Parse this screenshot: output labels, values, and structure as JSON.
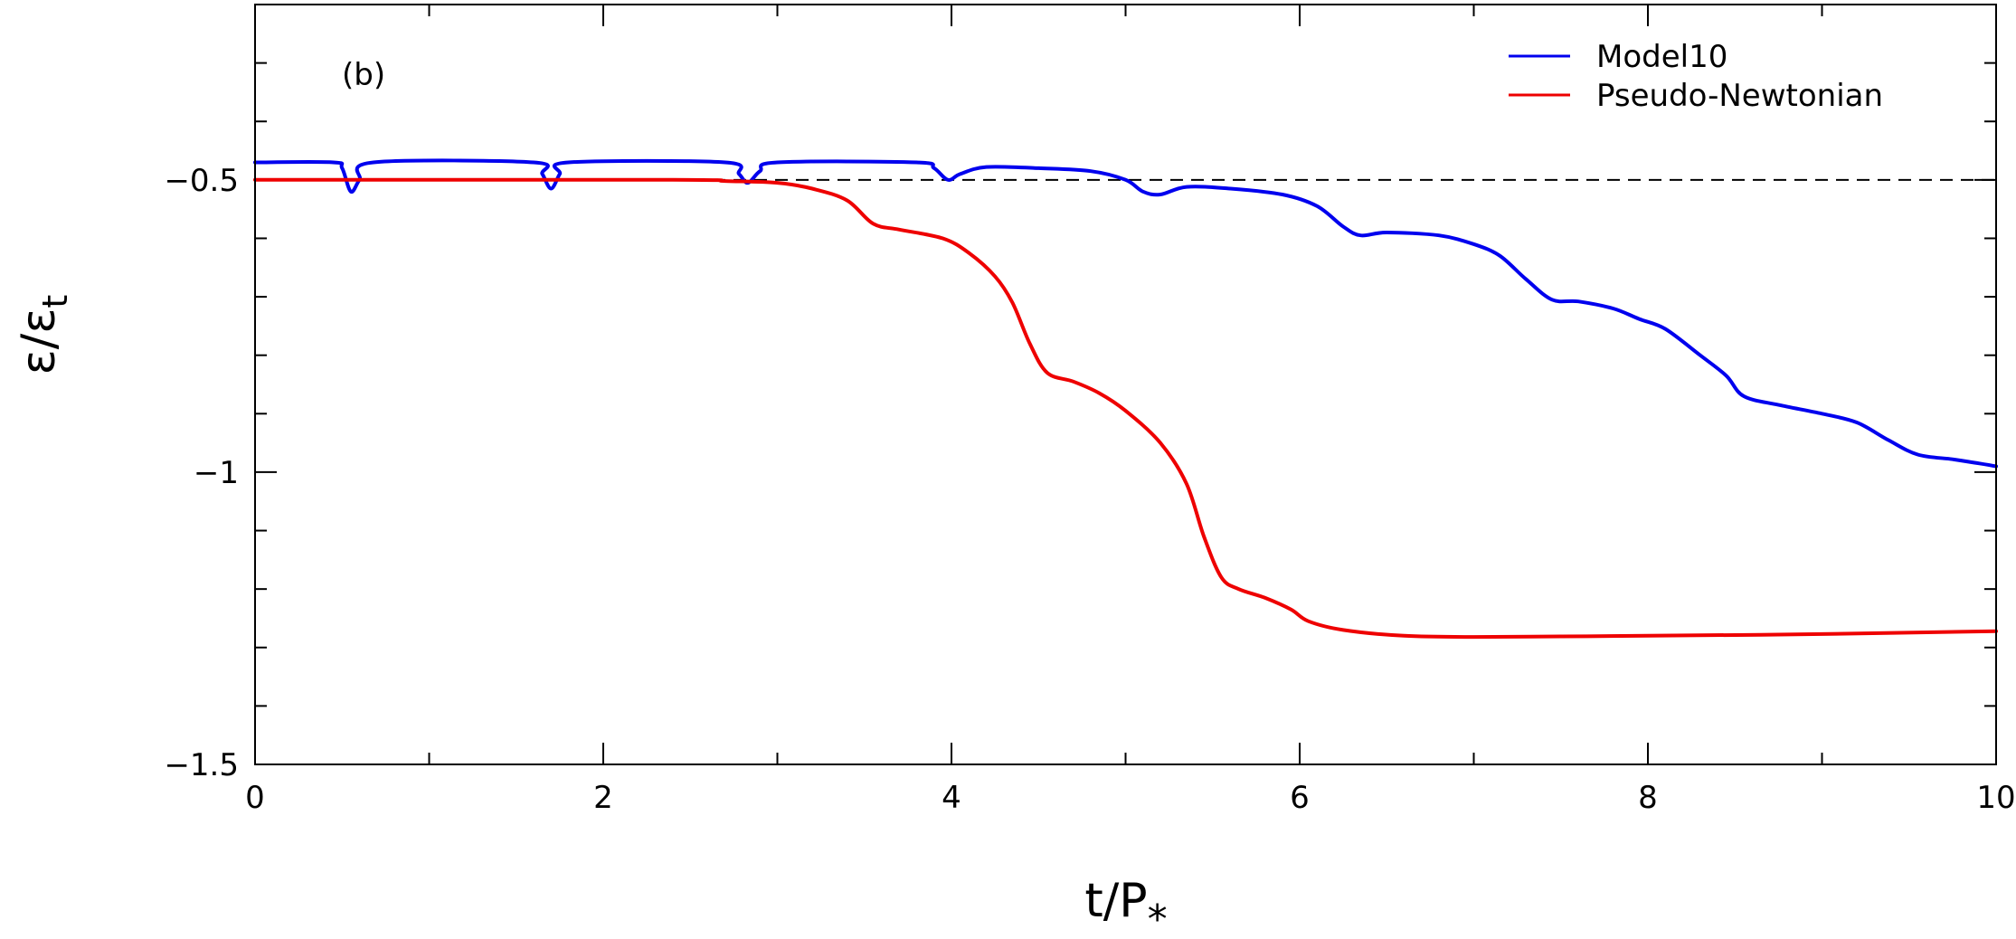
{
  "chart_data": {
    "type": "line",
    "panel_label": "(b)",
    "xlabel": "t/P",
    "xlabel_sub": "*",
    "ylabel": "ε/ε",
    "ylabel_sub": "t",
    "xlim": [
      0,
      10
    ],
    "ylim": [
      -1.5,
      -0.2
    ],
    "x_ticks": [
      0,
      2,
      4,
      6,
      8,
      10
    ],
    "x_tick_labels": [
      "0",
      "2",
      "4",
      "6",
      "8",
      "10"
    ],
    "y_ticks": [
      -1.5,
      -1,
      -0.5
    ],
    "y_tick_labels": [
      "−1.5",
      "−1",
      "−0.5"
    ],
    "reference_line": {
      "y": -0.5,
      "style": "dashed",
      "color": "#000000"
    },
    "legend": {
      "placement": "top-right"
    },
    "series": [
      {
        "name": "Model10",
        "color": "#0000ee",
        "points": [
          [
            0,
            -0.47
          ],
          [
            0.45,
            -0.47
          ],
          [
            0.5,
            -0.48
          ],
          [
            0.55,
            -0.52
          ],
          [
            0.6,
            -0.5
          ],
          [
            0.68,
            -0.47
          ],
          [
            1.6,
            -0.47
          ],
          [
            1.65,
            -0.49
          ],
          [
            1.7,
            -0.515
          ],
          [
            1.75,
            -0.49
          ],
          [
            1.8,
            -0.47
          ],
          [
            2.7,
            -0.47
          ],
          [
            2.78,
            -0.49
          ],
          [
            2.83,
            -0.505
          ],
          [
            2.9,
            -0.485
          ],
          [
            3.0,
            -0.47
          ],
          [
            3.8,
            -0.47
          ],
          [
            3.9,
            -0.48
          ],
          [
            3.98,
            -0.5
          ],
          [
            4.05,
            -0.49
          ],
          [
            4.2,
            -0.478
          ],
          [
            4.5,
            -0.48
          ],
          [
            4.8,
            -0.485
          ],
          [
            5.0,
            -0.5
          ],
          [
            5.1,
            -0.52
          ],
          [
            5.2,
            -0.525
          ],
          [
            5.35,
            -0.512
          ],
          [
            5.6,
            -0.515
          ],
          [
            5.9,
            -0.525
          ],
          [
            6.1,
            -0.545
          ],
          [
            6.25,
            -0.58
          ],
          [
            6.35,
            -0.595
          ],
          [
            6.5,
            -0.59
          ],
          [
            6.8,
            -0.595
          ],
          [
            7.0,
            -0.61
          ],
          [
            7.15,
            -0.63
          ],
          [
            7.3,
            -0.67
          ],
          [
            7.45,
            -0.705
          ],
          [
            7.6,
            -0.708
          ],
          [
            7.8,
            -0.72
          ],
          [
            7.95,
            -0.738
          ],
          [
            8.1,
            -0.755
          ],
          [
            8.3,
            -0.8
          ],
          [
            8.45,
            -0.835
          ],
          [
            8.55,
            -0.87
          ],
          [
            8.75,
            -0.885
          ],
          [
            9.0,
            -0.9
          ],
          [
            9.2,
            -0.915
          ],
          [
            9.38,
            -0.945
          ],
          [
            9.55,
            -0.97
          ],
          [
            9.75,
            -0.978
          ],
          [
            9.9,
            -0.985
          ],
          [
            10,
            -0.99
          ]
        ]
      },
      {
        "name": "Pseudo-Newtonian",
        "color": "#ee0000",
        "points": [
          [
            0,
            -0.5
          ],
          [
            2.4,
            -0.5
          ],
          [
            2.7,
            -0.502
          ],
          [
            3.0,
            -0.505
          ],
          [
            3.2,
            -0.515
          ],
          [
            3.4,
            -0.535
          ],
          [
            3.55,
            -0.575
          ],
          [
            3.7,
            -0.585
          ],
          [
            3.95,
            -0.6
          ],
          [
            4.1,
            -0.625
          ],
          [
            4.25,
            -0.665
          ],
          [
            4.35,
            -0.71
          ],
          [
            4.45,
            -0.78
          ],
          [
            4.55,
            -0.83
          ],
          [
            4.7,
            -0.845
          ],
          [
            4.85,
            -0.865
          ],
          [
            5.0,
            -0.895
          ],
          [
            5.2,
            -0.95
          ],
          [
            5.35,
            -1.02
          ],
          [
            5.45,
            -1.11
          ],
          [
            5.55,
            -1.18
          ],
          [
            5.65,
            -1.2
          ],
          [
            5.8,
            -1.215
          ],
          [
            5.95,
            -1.235
          ],
          [
            6.05,
            -1.255
          ],
          [
            6.25,
            -1.27
          ],
          [
            6.6,
            -1.28
          ],
          [
            7.0,
            -1.282
          ],
          [
            7.5,
            -1.281
          ],
          [
            8.0,
            -1.28
          ],
          [
            9.0,
            -1.277
          ],
          [
            10,
            -1.272
          ]
        ]
      }
    ]
  }
}
